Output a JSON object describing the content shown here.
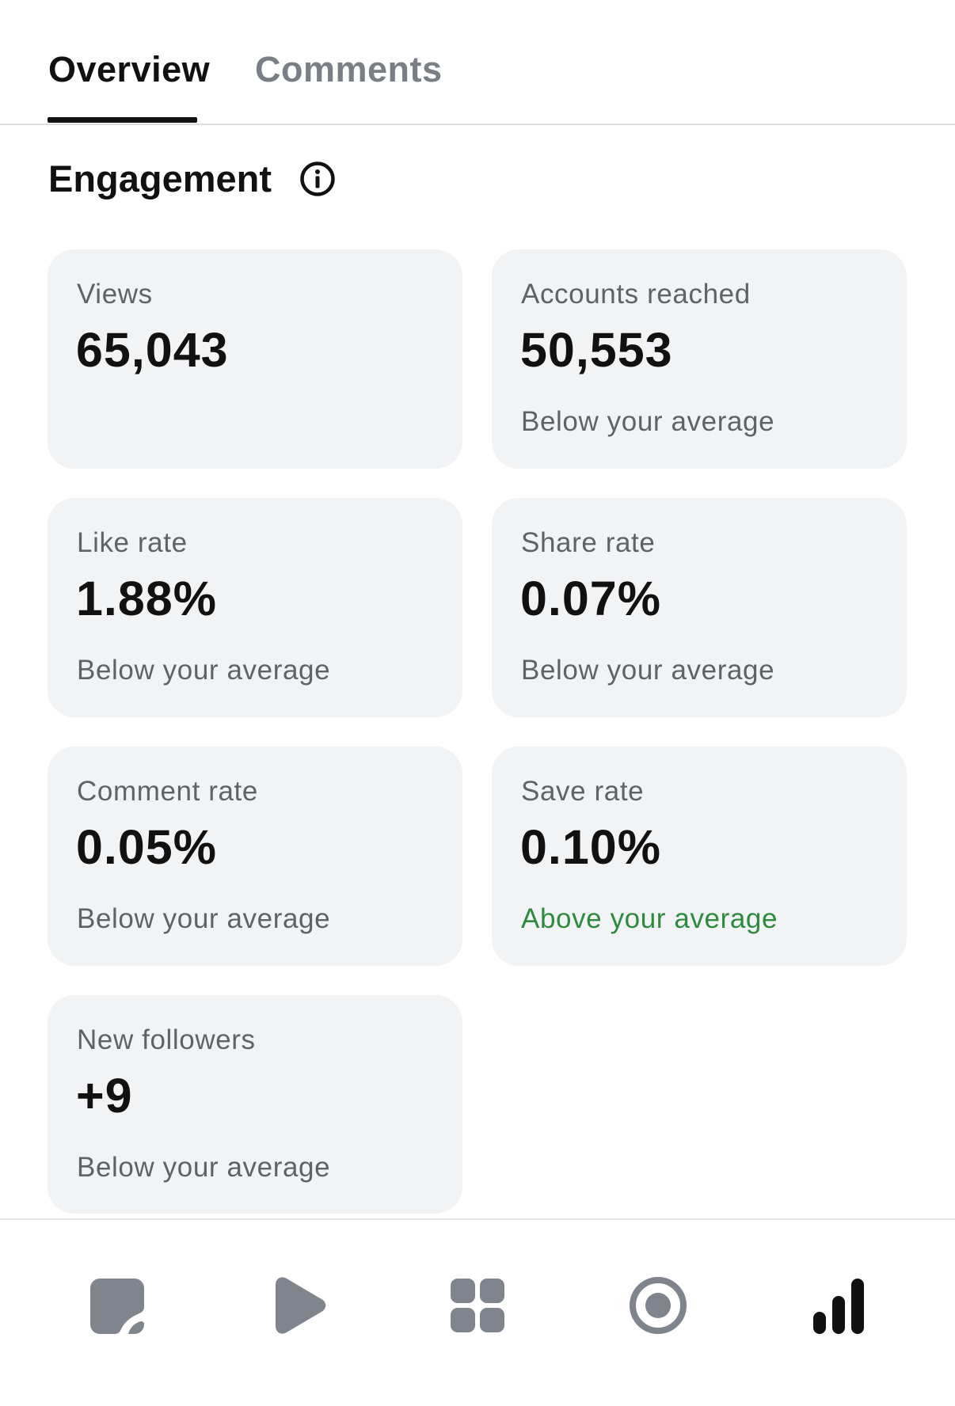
{
  "tabs": [
    {
      "label": "Overview",
      "active": true
    },
    {
      "label": "Comments",
      "active": false
    }
  ],
  "section": {
    "title": "Engagement",
    "info_icon": "info-circle-icon"
  },
  "metrics": [
    {
      "label": "Views",
      "value": "65,043",
      "note": ""
    },
    {
      "label": "Accounts reached",
      "value": "50,553",
      "note": "Below your average",
      "note_status": "below"
    },
    {
      "label": "Like rate",
      "value": "1.88%",
      "note": "Below your average",
      "note_status": "below"
    },
    {
      "label": "Share rate",
      "value": "0.07%",
      "note": "Below your average",
      "note_status": "below"
    },
    {
      "label": "Comment rate",
      "value": "0.05%",
      "note": "Below your average",
      "note_status": "below"
    },
    {
      "label": "Save rate",
      "value": "0.10%",
      "note": "Above your average",
      "note_status": "above"
    },
    {
      "label": "New followers",
      "value": "+9",
      "note": "Below your average",
      "note_status": "below"
    }
  ],
  "bottom_nav": [
    {
      "icon": "post-icon",
      "active": false
    },
    {
      "icon": "play-icon",
      "active": false
    },
    {
      "icon": "grid-icon",
      "active": false
    },
    {
      "icon": "target-icon",
      "active": false
    },
    {
      "icon": "insights-bar-chart-icon",
      "active": true
    }
  ],
  "colors": {
    "card_background": "#f2f3f5",
    "text_primary": "#111111",
    "text_secondary": "#5f6368",
    "positive": "#2e8b3e",
    "nav_inactive": "#80848c",
    "nav_active": "#111111"
  }
}
